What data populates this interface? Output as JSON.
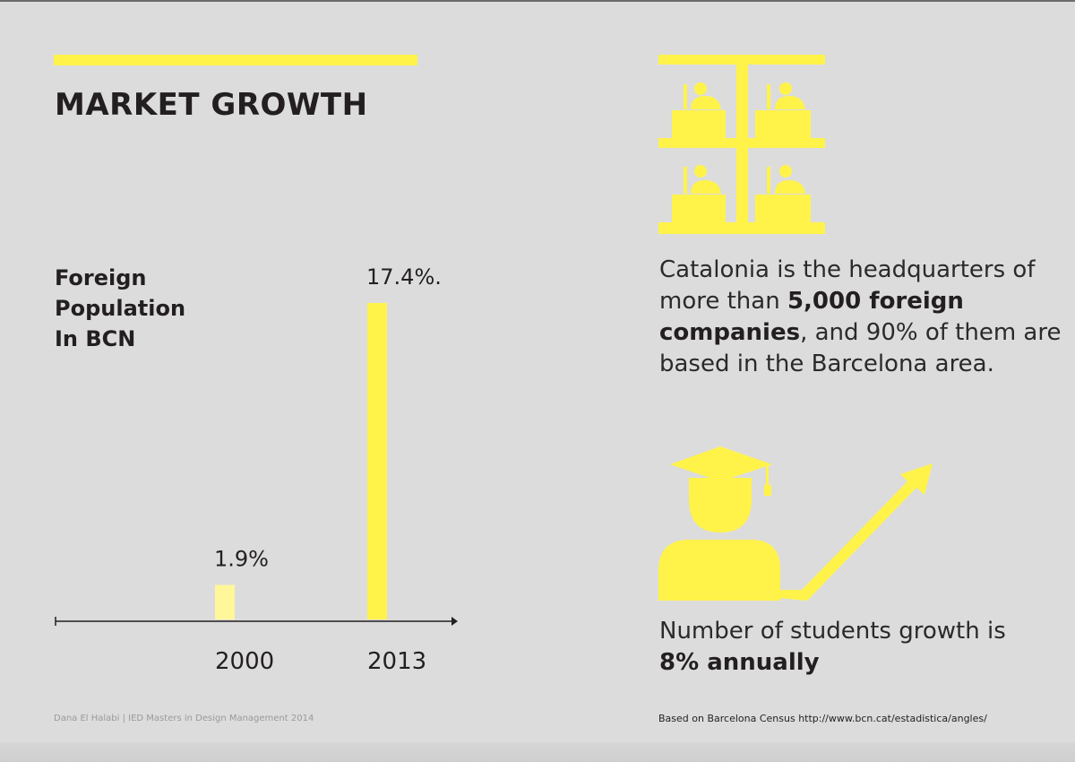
{
  "page": {
    "title": "MARKET GROWTH",
    "accent_color": "#fff34a"
  },
  "chart_title_lines": [
    "Foreign",
    "Population",
    "In BCN"
  ],
  "chart_data": {
    "type": "bar",
    "title": "Foreign Population In BCN",
    "categories": [
      "2000",
      "2013"
    ],
    "values": [
      1.9,
      17.4
    ],
    "value_labels": [
      "1.9%",
      "17.4%."
    ],
    "colors": [
      "#fff79a",
      "#fff34a"
    ],
    "xlabel": "",
    "ylabel": "",
    "ylim": [
      0,
      17.4
    ],
    "grid": false,
    "legend": "none"
  },
  "fact": {
    "icon": "office-workers-icon",
    "part1": "Catalonia is the headquarters of more than ",
    "bold": "5,000 foreign companies",
    "part2": ", and 90% of them are based in the Barcelona area."
  },
  "students": {
    "icon": "graduate-growth-arrow-icon",
    "part1": "Number of students growth is ",
    "bold": "8% annually"
  },
  "footer": {
    "left": "Dana El Halabi | IED Masters in Design Management 2014",
    "right": "Based on Barcelona Census http://www.bcn.cat/estadistica/angles/"
  }
}
